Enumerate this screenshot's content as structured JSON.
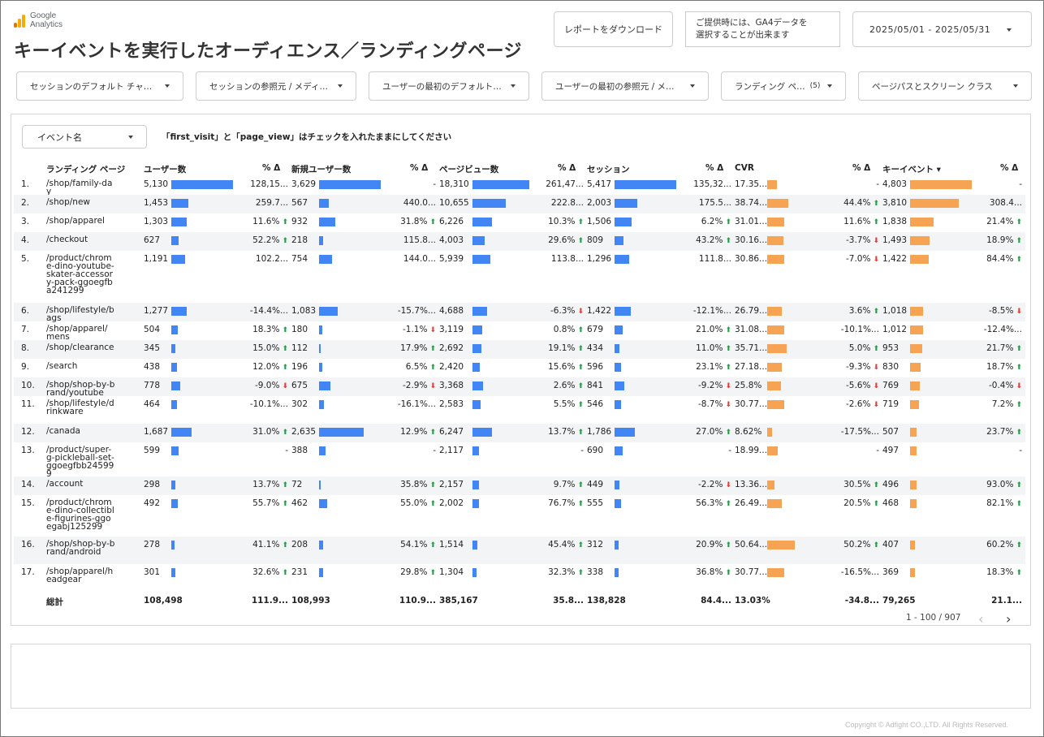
{
  "logo": {
    "line1": "Google",
    "line2": "Analytics"
  },
  "title": "キーイベントを実行したオーディエンス／ランディングページ",
  "download_label": "レポートをダウンロード",
  "note_line1": "ご提供時には、GA4データを",
  "note_line2": "選択することが出来ます",
  "date_range": "2025/05/01 - 2025/05/31",
  "filters": [
    {
      "label": "セッションのデフォルト チャ…"
    },
    {
      "label": "セッションの参照元 / メディ…"
    },
    {
      "label": "ユーザーの最初のデフォルト…"
    },
    {
      "label": "ユーザーの最初の参照元 / メ…"
    },
    {
      "label": "ランディング ペ…",
      "count": "(5)"
    },
    {
      "label": "ページパスとスクリーン クラス"
    }
  ],
  "event_filter_label": "イベント名",
  "instruction": "「first_visit」と「page_view」はチェックを入れたままにしてください",
  "columns": {
    "landing_page": "ランディング ページ",
    "users": "ユーザー数",
    "users_delta": "% Δ",
    "new_users": "新規ユーザー数",
    "new_users_delta": "% Δ",
    "pageviews": "ページビュー数",
    "pageviews_delta": "% Δ",
    "sessions": "セッション",
    "sessions_delta": "% Δ",
    "cvr": "CVR",
    "cvr_delta": "% Δ",
    "key_events": "キーイベント ▾",
    "key_events_delta": "% Δ"
  },
  "rows": [
    {
      "rank": "1.",
      "page": "/shop/family-day",
      "users": "5,130",
      "u_bar": 1.0,
      "ud": "128,15...",
      "ud_dir": "",
      "nu": "3,629",
      "nu_bar": 1.0,
      "nud": "-",
      "nud_dir": "",
      "pv": "18,310",
      "pv_bar": 1.0,
      "pvd": "261,47...",
      "pvd_dir": "",
      "s": "5,417",
      "s_bar": 1.0,
      "sd": "135,32...",
      "sd_dir": "",
      "cvr": "17.35...",
      "cvr_bar": 0.32,
      "cvrd": "-",
      "cvrd_dir": "",
      "ke": "4,803",
      "ke_bar": 1.0,
      "ked": "-",
      "ked_dir": ""
    },
    {
      "rank": "2.",
      "page": "/shop/new",
      "users": "1,453",
      "u_bar": 0.28,
      "ud": "259.7...",
      "ud_dir": "",
      "nu": "567",
      "nu_bar": 0.16,
      "nud": "440.0...",
      "nud_dir": "",
      "pv": "10,655",
      "pv_bar": 0.58,
      "pvd": "222.8...",
      "pvd_dir": "",
      "s": "2,003",
      "s_bar": 0.37,
      "sd": "175.5...",
      "sd_dir": "",
      "cvr": "38.74...",
      "cvr_bar": 0.72,
      "cvrd": "44.4%",
      "cvrd_dir": "up",
      "ke": "3,810",
      "ke_bar": 0.79,
      "ked": "308.4...",
      "ked_dir": ""
    },
    {
      "rank": "3.",
      "page": "/shop/apparel",
      "users": "1,303",
      "u_bar": 0.25,
      "ud": "11.6%",
      "ud_dir": "up",
      "nu": "932",
      "nu_bar": 0.26,
      "nud": "31.8%",
      "nud_dir": "up",
      "pv": "6,226",
      "pv_bar": 0.34,
      "pvd": "10.3%",
      "pvd_dir": "up",
      "s": "1,506",
      "s_bar": 0.28,
      "sd": "6.2%",
      "sd_dir": "up",
      "cvr": "31.01...",
      "cvr_bar": 0.58,
      "cvrd": "11.6%",
      "cvrd_dir": "up",
      "ke": "1,838",
      "ke_bar": 0.38,
      "ked": "21.4%",
      "ked_dir": "up"
    },
    {
      "rank": "4.",
      "page": "/checkout",
      "users": "627",
      "u_bar": 0.12,
      "ud": "52.2%",
      "ud_dir": "up",
      "nu": "218",
      "nu_bar": 0.06,
      "nud": "115.8...",
      "nud_dir": "",
      "pv": "4,003",
      "pv_bar": 0.22,
      "pvd": "29.6%",
      "pvd_dir": "up",
      "s": "809",
      "s_bar": 0.15,
      "sd": "43.2%",
      "sd_dir": "up",
      "cvr": "30.16...",
      "cvr_bar": 0.56,
      "cvrd": "-3.7%",
      "cvrd_dir": "dn",
      "ke": "1,493",
      "ke_bar": 0.31,
      "ked": "18.9%",
      "ked_dir": "up"
    },
    {
      "rank": "5.",
      "page": "/product/chrome-dino-youtube-skater-accessory-pack-ggoegfba241299",
      "users": "1,191",
      "u_bar": 0.23,
      "ud": "102.2...",
      "ud_dir": "",
      "nu": "754",
      "nu_bar": 0.21,
      "nud": "144.0...",
      "nud_dir": "",
      "pv": "5,939",
      "pv_bar": 0.32,
      "pvd": "113.8...",
      "pvd_dir": "",
      "s": "1,296",
      "s_bar": 0.24,
      "sd": "111.8...",
      "sd_dir": "",
      "cvr": "30.86...",
      "cvr_bar": 0.57,
      "cvrd": "-7.0%",
      "cvrd_dir": "dn",
      "ke": "1,422",
      "ke_bar": 0.3,
      "ked": "84.4%",
      "ked_dir": "up"
    },
    {
      "rank": "6.",
      "page": "/shop/lifestyle/bags",
      "users": "1,277",
      "u_bar": 0.25,
      "ud": "-14.4%...",
      "ud_dir": "",
      "nu": "1,083",
      "nu_bar": 0.3,
      "nud": "-15.7%...",
      "nud_dir": "",
      "pv": "4,688",
      "pv_bar": 0.26,
      "pvd": "-6.3%",
      "pvd_dir": "dn",
      "s": "1,422",
      "s_bar": 0.26,
      "sd": "-12.1%...",
      "sd_dir": "",
      "cvr": "26.79...",
      "cvr_bar": 0.5,
      "cvrd": "3.6%",
      "cvrd_dir": "up",
      "ke": "1,018",
      "ke_bar": 0.21,
      "ked": "-8.5%",
      "ked_dir": "dn"
    },
    {
      "rank": "7.",
      "page": "/shop/apparel/mens",
      "users": "504",
      "u_bar": 0.1,
      "ud": "18.3%",
      "ud_dir": "up",
      "nu": "180",
      "nu_bar": 0.05,
      "nud": "-1.1%",
      "nud_dir": "dn",
      "pv": "3,119",
      "pv_bar": 0.17,
      "pvd": "0.8%",
      "pvd_dir": "up",
      "s": "679",
      "s_bar": 0.13,
      "sd": "21.0%",
      "sd_dir": "up",
      "cvr": "31.08...",
      "cvr_bar": 0.58,
      "cvrd": "-10.1%...",
      "cvrd_dir": "",
      "ke": "1,012",
      "ke_bar": 0.21,
      "ked": "-12.4%...",
      "ked_dir": ""
    },
    {
      "rank": "8.",
      "page": "/shop/clearance",
      "users": "345",
      "u_bar": 0.07,
      "ud": "15.0%",
      "ud_dir": "up",
      "nu": "112",
      "nu_bar": 0.03,
      "nud": "17.9%",
      "nud_dir": "up",
      "pv": "2,692",
      "pv_bar": 0.15,
      "pvd": "19.1%",
      "pvd_dir": "up",
      "s": "434",
      "s_bar": 0.08,
      "sd": "11.0%",
      "sd_dir": "up",
      "cvr": "35.71...",
      "cvr_bar": 0.66,
      "cvrd": "5.0%",
      "cvrd_dir": "up",
      "ke": "953",
      "ke_bar": 0.2,
      "ked": "21.7%",
      "ked_dir": "up"
    },
    {
      "rank": "9.",
      "page": "/search",
      "users": "438",
      "u_bar": 0.09,
      "ud": "12.0%",
      "ud_dir": "up",
      "nu": "196",
      "nu_bar": 0.05,
      "nud": "6.5%",
      "nud_dir": "up",
      "pv": "2,420",
      "pv_bar": 0.13,
      "pvd": "15.6%",
      "pvd_dir": "up",
      "s": "596",
      "s_bar": 0.11,
      "sd": "23.1%",
      "sd_dir": "up",
      "cvr": "27.18...",
      "cvr_bar": 0.5,
      "cvrd": "-9.3%",
      "cvrd_dir": "dn",
      "ke": "830",
      "ke_bar": 0.17,
      "ked": "18.7%",
      "ked_dir": "up"
    },
    {
      "rank": "10.",
      "page": "/shop/shop-by-brand/youtube",
      "users": "778",
      "u_bar": 0.15,
      "ud": "-9.0%",
      "ud_dir": "dn",
      "nu": "675",
      "nu_bar": 0.19,
      "nud": "-2.9%",
      "nud_dir": "dn",
      "pv": "3,368",
      "pv_bar": 0.18,
      "pvd": "2.6%",
      "pvd_dir": "up",
      "s": "841",
      "s_bar": 0.16,
      "sd": "-9.2%",
      "sd_dir": "dn",
      "cvr": "25.8%",
      "cvr_bar": 0.48,
      "cvrd": "-5.6%",
      "cvrd_dir": "dn",
      "ke": "769",
      "ke_bar": 0.16,
      "ked": "-0.4%",
      "ked_dir": "dn"
    },
    {
      "rank": "11.",
      "page": "/shop/lifestyle/drinkware",
      "users": "464",
      "u_bar": 0.09,
      "ud": "-10.1%...",
      "ud_dir": "",
      "nu": "302",
      "nu_bar": 0.08,
      "nud": "-16.1%...",
      "nud_dir": "",
      "pv": "2,583",
      "pv_bar": 0.14,
      "pvd": "5.5%",
      "pvd_dir": "up",
      "s": "546",
      "s_bar": 0.1,
      "sd": "-8.7%",
      "sd_dir": "dn",
      "cvr": "30.77...",
      "cvr_bar": 0.57,
      "cvrd": "-2.6%",
      "cvrd_dir": "dn",
      "ke": "719",
      "ke_bar": 0.15,
      "ked": "7.2%",
      "ked_dir": "up"
    },
    {
      "rank": "12.",
      "page": "/canada",
      "users": "1,687",
      "u_bar": 0.33,
      "ud": "31.0%",
      "ud_dir": "up",
      "nu": "2,635",
      "nu_bar": 0.73,
      "nud": "12.9%",
      "nud_dir": "up",
      "pv": "6,247",
      "pv_bar": 0.34,
      "pvd": "13.7%",
      "pvd_dir": "up",
      "s": "1,786",
      "s_bar": 0.33,
      "sd": "27.0%",
      "sd_dir": "up",
      "cvr": "8.62%",
      "cvr_bar": 0.16,
      "cvrd": "-17.5%...",
      "cvrd_dir": "",
      "ke": "507",
      "ke_bar": 0.11,
      "ked": "23.7%",
      "ked_dir": "up"
    },
    {
      "rank": "13.",
      "page": "/product/super-g-pickleball-set-ggoegfbb245999",
      "users": "599",
      "u_bar": 0.12,
      "ud": "-",
      "ud_dir": "",
      "nu": "388",
      "nu_bar": 0.11,
      "nud": "-",
      "nud_dir": "",
      "pv": "2,117",
      "pv_bar": 0.12,
      "pvd": "-",
      "pvd_dir": "",
      "s": "690",
      "s_bar": 0.13,
      "sd": "-",
      "sd_dir": "",
      "cvr": "18.99...",
      "cvr_bar": 0.35,
      "cvrd": "-",
      "cvrd_dir": "",
      "ke": "497",
      "ke_bar": 0.1,
      "ked": "-",
      "ked_dir": ""
    },
    {
      "rank": "14.",
      "page": "/account",
      "users": "298",
      "u_bar": 0.06,
      "ud": "13.7%",
      "ud_dir": "up",
      "nu": "72",
      "nu_bar": 0.02,
      "nud": "35.8%",
      "nud_dir": "up",
      "pv": "2,157",
      "pv_bar": 0.12,
      "pvd": "9.7%",
      "pvd_dir": "up",
      "s": "449",
      "s_bar": 0.08,
      "sd": "-2.2%",
      "sd_dir": "dn",
      "cvr": "13.36...",
      "cvr_bar": 0.25,
      "cvrd": "30.5%",
      "cvrd_dir": "up",
      "ke": "496",
      "ke_bar": 0.1,
      "ked": "93.0%",
      "ked_dir": "up"
    },
    {
      "rank": "15.",
      "page": "/product/chrome-dino-collectible-figurines-ggoegabj125299",
      "users": "492",
      "u_bar": 0.1,
      "ud": "55.7%",
      "ud_dir": "up",
      "nu": "462",
      "nu_bar": 0.13,
      "nud": "55.0%",
      "nud_dir": "up",
      "pv": "2,002",
      "pv_bar": 0.11,
      "pvd": "76.7%",
      "pvd_dir": "up",
      "s": "555",
      "s_bar": 0.1,
      "sd": "56.3%",
      "sd_dir": "up",
      "cvr": "26.49...",
      "cvr_bar": 0.49,
      "cvrd": "20.5%",
      "cvrd_dir": "up",
      "ke": "468",
      "ke_bar": 0.1,
      "ked": "82.1%",
      "ked_dir": "up"
    },
    {
      "rank": "16.",
      "page": "/shop/shop-by-brand/android",
      "users": "278",
      "u_bar": 0.05,
      "ud": "41.1%",
      "ud_dir": "up",
      "nu": "208",
      "nu_bar": 0.06,
      "nud": "54.1%",
      "nud_dir": "up",
      "pv": "1,514",
      "pv_bar": 0.08,
      "pvd": "45.4%",
      "pvd_dir": "up",
      "s": "312",
      "s_bar": 0.06,
      "sd": "20.9%",
      "sd_dir": "up",
      "cvr": "50.64...",
      "cvr_bar": 0.94,
      "cvrd": "50.2%",
      "cvrd_dir": "up",
      "ke": "407",
      "ke_bar": 0.08,
      "ked": "60.2%",
      "ked_dir": "up"
    },
    {
      "rank": "17.",
      "page": "/shop/apparel/headgear",
      "users": "301",
      "u_bar": 0.06,
      "ud": "32.6%",
      "ud_dir": "up",
      "nu": "231",
      "nu_bar": 0.06,
      "nud": "29.8%",
      "nud_dir": "up",
      "pv": "1,304",
      "pv_bar": 0.07,
      "pvd": "32.3%",
      "pvd_dir": "up",
      "s": "338",
      "s_bar": 0.06,
      "sd": "36.8%",
      "sd_dir": "up",
      "cvr": "30.77...",
      "cvr_bar": 0.57,
      "cvrd": "-16.5%...",
      "cvrd_dir": "",
      "ke": "369",
      "ke_bar": 0.08,
      "ked": "18.3%",
      "ked_dir": "up"
    }
  ],
  "totals": {
    "label": "総計",
    "users": "108,498",
    "ud": "111.9...",
    "nu": "108,993",
    "nud": "110.9...",
    "pv": "385,167",
    "pvd": "35.8...",
    "s": "138,828",
    "sd": "84.4...",
    "cvr": "13.03%",
    "cvrd": "-34.8...",
    "ke": "79,265",
    "ked": "21.1..."
  },
  "pager": {
    "range": "1 - 100 / 907",
    "prev": "‹",
    "next": "›"
  },
  "copyright": "Copyright © Adfight CO.,LTD. All Rights Reserved.",
  "colors": {
    "bar_blue": "#4285f4",
    "bar_orange": "#f6a454",
    "up": "#1a9e40",
    "down": "#e53935"
  }
}
